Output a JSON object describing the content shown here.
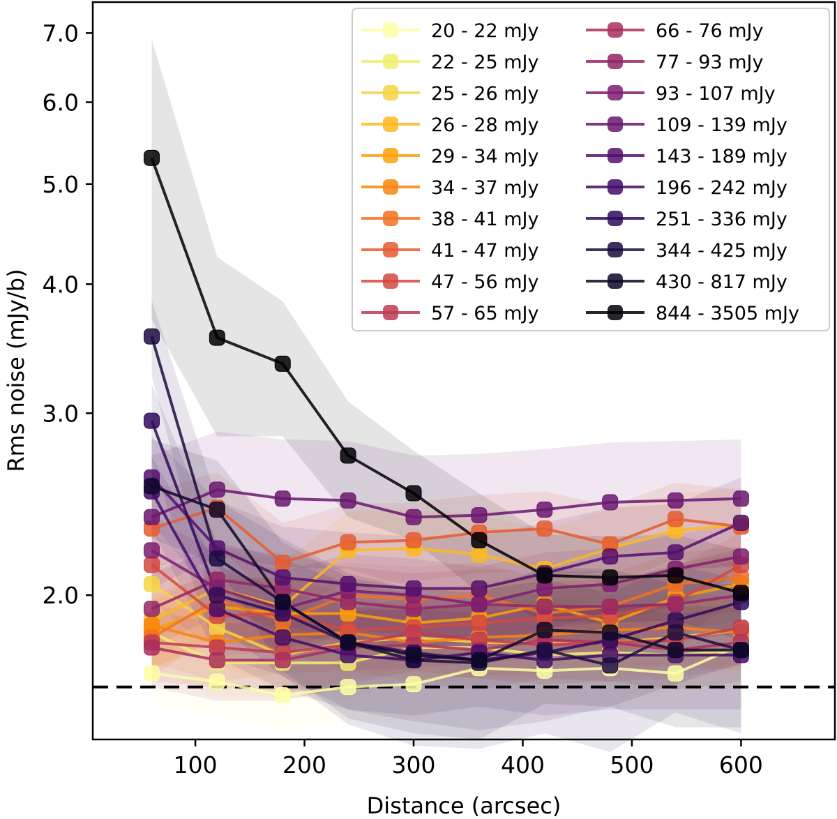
{
  "chart_data": {
    "type": "line",
    "xlabel": "Distance (arcsec)",
    "ylabel": "Rms noise (mJy/b)",
    "xlim": [
      6,
      686
    ],
    "ylim": [
      1.45,
      7.5
    ],
    "yscale": "log",
    "x_ticks": [
      100,
      200,
      300,
      400,
      500,
      600
    ],
    "x_tick_labels": [
      "100",
      "200",
      "300",
      "400",
      "500",
      "600"
    ],
    "y_ticks": [
      2.0,
      3.0,
      4.0,
      5.0,
      6.0,
      7.0
    ],
    "y_tick_labels": [
      "2.0",
      "3.0",
      "4.0",
      "5.0",
      "6.0",
      "7.0"
    ],
    "reference_line": {
      "y": 1.63,
      "style": "dashed",
      "color": "#000000"
    },
    "legend_position": "top-right",
    "x": [
      60,
      120,
      180,
      240,
      300,
      360,
      420,
      480,
      540,
      600
    ],
    "series": [
      {
        "name": "20 - 22 mJy",
        "color": "#fcffa4",
        "values": [
          1.68,
          1.65,
          1.6,
          1.63,
          1.64,
          1.7,
          1.69,
          1.7,
          1.68,
          1.79
        ],
        "band": [
          0.12,
          0.12,
          0.12,
          0.12,
          0.12,
          0.12,
          0.12,
          0.12,
          0.12,
          0.12
        ]
      },
      {
        "name": "22 - 25 mJy",
        "color": "#f1ed71",
        "values": [
          1.84,
          1.72,
          1.72,
          1.72,
          1.78,
          1.78,
          1.75,
          1.76,
          1.75,
          1.77
        ],
        "band": [
          0.13,
          0.13,
          0.13,
          0.13,
          0.13,
          0.13,
          0.13,
          0.13,
          0.13,
          0.13
        ]
      },
      {
        "name": "25 - 26 mJy",
        "color": "#f6d543",
        "values": [
          2.05,
          1.86,
          1.75,
          1.8,
          1.82,
          1.8,
          1.8,
          1.8,
          1.82,
          1.85
        ],
        "band": [
          0.14,
          0.14,
          0.14,
          0.14,
          0.14,
          0.14,
          0.14,
          0.14,
          0.14,
          0.14
        ]
      },
      {
        "name": "26 - 28 mJy",
        "color": "#fbba1f",
        "values": [
          1.89,
          2.03,
          1.95,
          2.21,
          2.22,
          2.19,
          2.12,
          2.22,
          2.31,
          2.34
        ],
        "band": [
          0.2,
          0.2,
          0.2,
          0.2,
          0.2,
          0.2,
          0.2,
          0.2,
          0.2,
          0.2
        ]
      },
      {
        "name": "29 - 34 mJy",
        "color": "#fca108",
        "values": [
          1.85,
          1.95,
          1.92,
          1.92,
          1.88,
          1.9,
          1.96,
          1.88,
          1.99,
          2.05
        ],
        "band": [
          0.15,
          0.15,
          0.15,
          0.15,
          0.15,
          0.15,
          0.15,
          0.15,
          0.15,
          0.15
        ]
      },
      {
        "name": "34 - 37 mJy",
        "color": "#f8850f",
        "values": [
          1.87,
          1.8,
          1.83,
          1.84,
          1.8,
          1.82,
          1.83,
          1.85,
          1.86,
          1.84
        ],
        "band": [
          0.15,
          0.15,
          0.15,
          0.15,
          0.15,
          0.15,
          0.15,
          0.15,
          0.15,
          0.15
        ]
      },
      {
        "name": "38 - 41 mJy",
        "color": "#f1711f",
        "values": [
          1.82,
          1.98,
          1.89,
          2.0,
          1.98,
          2.0,
          1.92,
          1.95,
          2.05,
          2.08
        ],
        "band": [
          0.15,
          0.15,
          0.15,
          0.15,
          0.15,
          0.15,
          0.15,
          0.15,
          0.15,
          0.15
        ]
      },
      {
        "name": "41 - 47 mJy",
        "color": "#e55c30",
        "values": [
          2.32,
          2.43,
          2.15,
          2.25,
          2.26,
          2.3,
          2.32,
          2.24,
          2.37,
          2.33
        ],
        "band": [
          0.2,
          0.2,
          0.2,
          0.2,
          0.2,
          0.2,
          0.2,
          0.2,
          0.2,
          0.2
        ]
      },
      {
        "name": "47 - 56 mJy",
        "color": "#d44842",
        "values": [
          2.14,
          1.91,
          1.92,
          1.85,
          1.86,
          1.88,
          1.9,
          1.91,
          1.97,
          2.14
        ],
        "band": [
          0.16,
          0.16,
          0.16,
          0.16,
          0.16,
          0.16,
          0.16,
          0.16,
          0.16,
          0.16
        ]
      },
      {
        "name": "57 - 65 mJy",
        "color": "#c03a51",
        "values": [
          1.8,
          1.78,
          1.76,
          1.79,
          1.84,
          1.81,
          1.79,
          1.8,
          1.81,
          1.86
        ],
        "band": [
          0.15,
          0.15,
          0.15,
          0.15,
          0.15,
          0.15,
          0.15,
          0.15,
          0.15,
          0.15
        ]
      },
      {
        "name": "66 - 76 mJy",
        "color": "#a92e5e",
        "values": [
          1.78,
          1.73,
          1.73,
          1.78,
          1.79,
          1.77,
          1.81,
          1.8,
          1.77,
          1.8
        ],
        "band": [
          0.15,
          0.15,
          0.15,
          0.15,
          0.15,
          0.15,
          0.15,
          0.15,
          0.15,
          0.15
        ]
      },
      {
        "name": "77 - 93 mJy",
        "color": "#932667",
        "values": [
          1.94,
          2.07,
          2.03,
          1.97,
          1.94,
          1.96,
          1.95,
          1.95,
          1.96,
          2.0
        ],
        "band": [
          0.16,
          0.16,
          0.16,
          0.16,
          0.16,
          0.16,
          0.16,
          0.16,
          0.16,
          0.16
        ]
      },
      {
        "name": "93 - 107 mJy",
        "color": "#7c1d6f",
        "values": [
          2.21,
          2.03,
          1.94,
          2.02,
          2.0,
          1.96,
          2.03,
          2.05,
          2.12,
          2.18
        ],
        "band": [
          0.17,
          0.17,
          0.17,
          0.17,
          0.17,
          0.17,
          0.17,
          0.17,
          0.17,
          0.17
        ]
      },
      {
        "name": "109 - 139 mJy",
        "color": "#6a176e",
        "values": [
          2.38,
          2.53,
          2.48,
          2.47,
          2.38,
          2.39,
          2.42,
          2.46,
          2.47,
          2.48
        ],
        "band": [
          0.35,
          0.35,
          0.35,
          0.35,
          0.35,
          0.35,
          0.35,
          0.35,
          0.35,
          0.35
        ]
      },
      {
        "name": "143 - 189 mJy",
        "color": "#550f6d",
        "values": [
          2.6,
          2.22,
          2.08,
          2.05,
          2.03,
          2.03,
          2.1,
          2.18,
          2.2,
          2.35
        ],
        "band": [
          0.25,
          0.25,
          0.25,
          0.25,
          0.25,
          0.25,
          0.25,
          0.25,
          0.25,
          0.25
        ]
      },
      {
        "name": "196 - 242 mJy",
        "color": "#420a68",
        "values": [
          2.52,
          1.94,
          1.82,
          1.75,
          1.73,
          1.76,
          1.73,
          1.75,
          1.75,
          1.75
        ],
        "band": [
          0.2,
          0.2,
          0.2,
          0.2,
          0.2,
          0.2,
          0.2,
          0.2,
          0.2,
          0.2
        ]
      },
      {
        "name": "251 - 336 mJy",
        "color": "#2f0a5b",
        "values": [
          2.95,
          2.0,
          1.92,
          1.8,
          1.76,
          1.73,
          1.76,
          1.81,
          1.89,
          1.97
        ],
        "band": [
          0.25,
          0.25,
          0.25,
          0.25,
          0.25,
          0.25,
          0.25,
          0.25,
          0.25,
          0.25
        ]
      },
      {
        "name": "344 - 425 mJy",
        "color": "#1b0c41",
        "values": [
          3.56,
          2.17,
          1.97,
          1.8,
          1.73,
          1.72,
          1.77,
          1.71,
          1.84,
          1.77
        ],
        "band": [
          0.3,
          0.3,
          0.3,
          0.3,
          0.3,
          0.3,
          0.3,
          0.3,
          0.3,
          0.3
        ]
      },
      {
        "name": "430 - 817 mJy",
        "color": "#0d0829",
        "values": [
          2.55,
          2.42,
          1.97,
          1.8,
          1.75,
          1.73,
          1.85,
          1.84,
          1.77,
          1.77
        ],
        "band": [
          0.28,
          0.28,
          0.28,
          0.28,
          0.28,
          0.28,
          0.28,
          0.28,
          0.28,
          0.28
        ]
      },
      {
        "name": "844 - 3505 mJy",
        "color": "#000004",
        "values": [
          5.3,
          3.55,
          3.35,
          2.73,
          2.51,
          2.26,
          2.09,
          2.08,
          2.09,
          2.01
        ],
        "band": [
          1.6,
          0.7,
          0.5,
          0.35,
          0.25,
          0.25,
          0.2,
          0.2,
          0.2,
          0.2
        ]
      }
    ]
  }
}
